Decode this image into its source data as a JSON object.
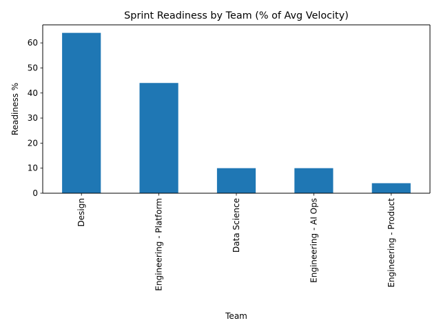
{
  "chart_data": {
    "type": "bar",
    "title": "Sprint Readiness by Team (% of Avg Velocity)",
    "xlabel": "Team",
    "ylabel": "Readiness %",
    "categories": [
      "Design",
      "Engineering - Platform",
      "Data Science",
      "Engineering - AI Ops",
      "Engineering - Product"
    ],
    "values": [
      64,
      44,
      10,
      10,
      4
    ],
    "ylim": [
      0,
      67.2
    ],
    "yticks": [
      0,
      10,
      20,
      30,
      40,
      50,
      60
    ],
    "grid": false,
    "legend": "none",
    "bar_color": "#1f77b4"
  }
}
